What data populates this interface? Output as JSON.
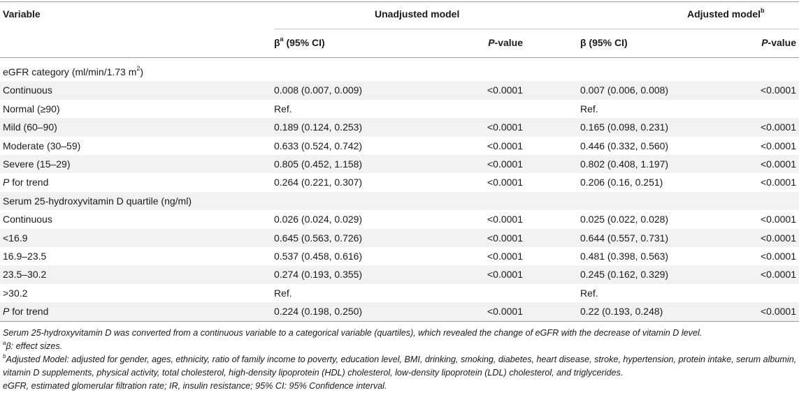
{
  "header": {
    "variable": "Variable",
    "unadjusted": "Unadjusted model",
    "adjusted": "Adjusted model",
    "adjusted_sup": "b",
    "beta": "β",
    "beta_sup": "a",
    "ci": " (95% CI)",
    "beta_adj": "β (95% CI)",
    "p_italic": "P",
    "p_rest": "-value"
  },
  "rows": [
    {
      "var": "eGFR category (ml/min/1.73 m",
      "var_sup": "2",
      "var_tail": ")",
      "ub": "",
      "up": "",
      "ab": "",
      "ap": ""
    },
    {
      "var": "Continuous",
      "ub": "0.008 (0.007, 0.009)",
      "up": "<0.0001",
      "ab": "0.007 (0.006, 0.008)",
      "ap": "<0.0001"
    },
    {
      "var": "Normal (≥90)",
      "ub": "Ref.",
      "up": "",
      "ab": "Ref.",
      "ap": ""
    },
    {
      "var": "Mild (60–90)",
      "ub": "0.189 (0.124, 0.253)",
      "up": "<0.0001",
      "ab": "0.165 (0.098, 0.231)",
      "ap": "<0.0001"
    },
    {
      "var": "Moderate (30–59)",
      "ub": "0.633 (0.524, 0.742)",
      "up": "<0.0001",
      "ab": "0.446 (0.332, 0.560)",
      "ap": "<0.0001"
    },
    {
      "var": "Severe (15–29)",
      "ub": "0.805 (0.452, 1.158)",
      "up": "<0.0001",
      "ab": "0.802 (0.408, 1.197)",
      "ap": "<0.0001"
    },
    {
      "var_italic": "P",
      "var": " for trend",
      "ub": "0.264 (0.221, 0.307)",
      "up": "<0.0001",
      "ab": "0.206 (0.16, 0.251)",
      "ap": "<0.0001"
    },
    {
      "var": "Serum 25-hydroxyvitamin D quartile (ng/ml)",
      "ub": "",
      "up": "",
      "ab": "",
      "ap": ""
    },
    {
      "var": "Continuous",
      "ub": "0.026 (0.024, 0.029)",
      "up": "<0.0001",
      "ab": "0.025 (0.022, 0.028)",
      "ap": "<0.0001"
    },
    {
      "var": "<16.9",
      "ub": "0.645 (0.563, 0.726)",
      "up": "<0.0001",
      "ab": "0.644 (0.557, 0.731)",
      "ap": "<0.0001"
    },
    {
      "var": "16.9–23.5",
      "ub": "0.537 (0.458, 0.616)",
      "up": "<0.0001",
      "ab": "0.481 (0.398, 0.563)",
      "ap": "<0.0001"
    },
    {
      "var": "23.5–30.2",
      "ub": "0.274 (0.193, 0.355)",
      "up": "<0.0001",
      "ab": "0.245 (0.162, 0.329)",
      "ap": "<0.0001"
    },
    {
      "var": ">30.2",
      "ub": "Ref.",
      "up": "",
      "ab": "Ref.",
      "ap": ""
    },
    {
      "var_italic": "P",
      "var": " for trend",
      "ub": "0.224 (0.198, 0.250)",
      "up": "<0.0001",
      "ab": "0.22 (0.193, 0.248)",
      "ap": "<0.0001"
    }
  ],
  "notes": {
    "n1": "Serum 25-hydroxyvitamin D was converted from a continuous variable to a categorical variable (quartiles), which revealed the change of eGFR with the decrease of vitamin D level.",
    "n2_sup": "a",
    "n2": "β: effect sizes.",
    "n3_sup": "b",
    "n3": "Adjusted Model: adjusted for gender, ages, ethnicity, ratio of family income to poverty, education level, BMI, drinking, smoking, diabetes, heart disease, stroke, hypertension, protein intake, serum albumin, vitamin D supplements, physical activity, total cholesterol, high-density lipoprotein (HDL) cholesterol, low-density lipoprotein (LDL) cholesterol, and triglycerides.",
    "n4": "eGFR, estimated glomerular filtration rate; IR, insulin resistance; 95% CI: 95% Confidence interval."
  }
}
